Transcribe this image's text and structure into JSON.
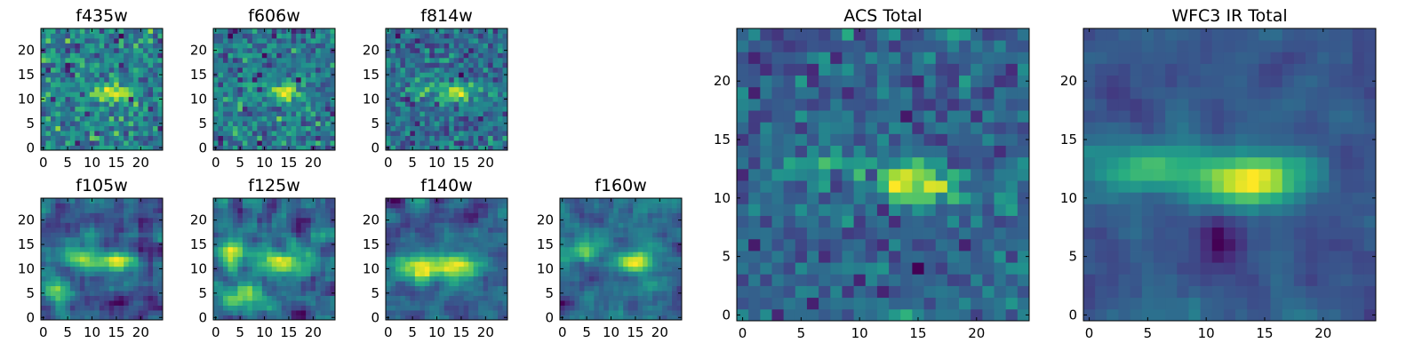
{
  "chart_data": [
    {
      "type": "heatmap",
      "title": "f435w",
      "xlabel": "",
      "ylabel": "",
      "grid_size": 25,
      "xlim": [
        0,
        25
      ],
      "ylim": [
        0,
        25
      ],
      "xticks": [
        0,
        5,
        10,
        15,
        20
      ],
      "yticks": [
        0,
        5,
        10,
        15,
        20
      ],
      "colormap": "viridis",
      "grid": false,
      "features": [
        {
          "x": 15,
          "y": 12,
          "sx": 2.0,
          "sy": 1.2,
          "amp": 1.0
        },
        {
          "x": 11,
          "y": 12,
          "sx": 1.5,
          "sy": 1.2,
          "amp": 0.4
        }
      ],
      "noise": 0.55,
      "seed": 11
    },
    {
      "type": "heatmap",
      "title": "f606w",
      "xlabel": "",
      "ylabel": "",
      "grid_size": 25,
      "xlim": [
        0,
        25
      ],
      "ylim": [
        0,
        25
      ],
      "xticks": [
        0,
        5,
        10,
        15,
        20
      ],
      "yticks": [
        0,
        5,
        10,
        15,
        20
      ],
      "colormap": "viridis",
      "grid": false,
      "features": [
        {
          "x": 15,
          "y": 12,
          "sx": 2.2,
          "sy": 1.2,
          "amp": 1.0
        },
        {
          "x": 7,
          "y": 12,
          "sx": 1.5,
          "sy": 1.2,
          "amp": 0.35
        }
      ],
      "noise": 0.5,
      "seed": 23
    },
    {
      "type": "heatmap",
      "title": "f814w",
      "xlabel": "",
      "ylabel": "",
      "grid_size": 25,
      "xlim": [
        0,
        25
      ],
      "ylim": [
        0,
        25
      ],
      "xticks": [
        0,
        5,
        10,
        15,
        20
      ],
      "yticks": [
        0,
        5,
        10,
        15,
        20
      ],
      "colormap": "viridis",
      "grid": false,
      "features": [
        {
          "x": 15,
          "y": 12,
          "sx": 2.5,
          "sy": 1.3,
          "amp": 1.0
        },
        {
          "x": 7,
          "y": 13,
          "sx": 2.0,
          "sy": 1.2,
          "amp": 0.5
        }
      ],
      "noise": 0.5,
      "seed": 37
    },
    {
      "type": "heatmap",
      "title": "f105w",
      "xlabel": "",
      "ylabel": "",
      "grid_size": 25,
      "xlim": [
        0,
        25
      ],
      "ylim": [
        0,
        25
      ],
      "xticks": [
        0,
        5,
        10,
        15,
        20
      ],
      "yticks": [
        0,
        5,
        10,
        15,
        20
      ],
      "colormap": "viridis",
      "grid": false,
      "features": [
        {
          "x": 15,
          "y": 12,
          "sx": 2.5,
          "sy": 1.5,
          "amp": 0.8
        },
        {
          "x": 8,
          "y": 13,
          "sx": 2.5,
          "sy": 1.5,
          "amp": 0.5
        },
        {
          "x": 3,
          "y": 6,
          "sx": 2.5,
          "sy": 2.0,
          "amp": 0.4
        }
      ],
      "noise": 0.4,
      "smooth": true,
      "seed": 41
    },
    {
      "type": "heatmap",
      "title": "f125w",
      "xlabel": "",
      "ylabel": "",
      "grid_size": 25,
      "xlim": [
        0,
        25
      ],
      "ylim": [
        0,
        25
      ],
      "xticks": [
        0,
        5,
        10,
        15,
        20
      ],
      "yticks": [
        0,
        5,
        10,
        15,
        20
      ],
      "colormap": "viridis",
      "grid": false,
      "features": [
        {
          "x": 14,
          "y": 12,
          "sx": 3.0,
          "sy": 1.8,
          "amp": 0.6
        },
        {
          "x": 4,
          "y": 14,
          "sx": 2.0,
          "sy": 2.0,
          "amp": 0.5
        },
        {
          "x": 6,
          "y": 5,
          "sx": 3.0,
          "sy": 2.0,
          "amp": 0.5
        }
      ],
      "noise": 0.45,
      "smooth": true,
      "seed": 53
    },
    {
      "type": "heatmap",
      "title": "f140w",
      "xlabel": "",
      "ylabel": "",
      "grid_size": 25,
      "xlim": [
        0,
        25
      ],
      "ylim": [
        0,
        25
      ],
      "xticks": [
        0,
        5,
        10,
        15,
        20
      ],
      "yticks": [
        0,
        5,
        10,
        15,
        20
      ],
      "colormap": "viridis",
      "grid": false,
      "features": [
        {
          "x": 14,
          "y": 11,
          "sx": 4.0,
          "sy": 1.8,
          "amp": 0.8
        },
        {
          "x": 6,
          "y": 10,
          "sx": 3.0,
          "sy": 2.0,
          "amp": 0.6
        }
      ],
      "noise": 0.4,
      "smooth": true,
      "seed": 67
    },
    {
      "type": "heatmap",
      "title": "f160w",
      "xlabel": "",
      "ylabel": "",
      "grid_size": 25,
      "xlim": [
        0,
        25
      ],
      "ylim": [
        0,
        25
      ],
      "xticks": [
        0,
        5,
        10,
        15,
        20
      ],
      "yticks": [
        0,
        5,
        10,
        15,
        20
      ],
      "colormap": "viridis",
      "grid": false,
      "features": [
        {
          "x": 15,
          "y": 12,
          "sx": 2.5,
          "sy": 1.5,
          "amp": 0.9
        },
        {
          "x": 5,
          "y": 14,
          "sx": 2.0,
          "sy": 1.5,
          "amp": 0.6
        }
      ],
      "noise": 0.4,
      "smooth": true,
      "seed": 79
    },
    {
      "type": "heatmap",
      "title": "ACS Total",
      "xlabel": "",
      "ylabel": "",
      "grid_size": 25,
      "xlim": [
        0,
        25
      ],
      "ylim": [
        0,
        25
      ],
      "xticks": [
        0,
        5,
        10,
        15,
        20
      ],
      "yticks": [
        0,
        5,
        10,
        15,
        20
      ],
      "colormap": "viridis",
      "grid": false,
      "features": [
        {
          "x": 15.5,
          "y": 11.8,
          "sx": 2.3,
          "sy": 1.2,
          "amp": 1.0
        },
        {
          "x": 7,
          "y": 13.5,
          "sx": 2.5,
          "sy": 1.0,
          "amp": 0.4
        }
      ],
      "noise": 0.35,
      "seed": 97
    },
    {
      "type": "heatmap",
      "title": "WFC3 IR Total",
      "xlabel": "",
      "ylabel": "",
      "grid_size": 25,
      "xlim": [
        0,
        25
      ],
      "ylim": [
        0,
        25
      ],
      "xticks": [
        0,
        5,
        10,
        15,
        20
      ],
      "yticks": [
        0,
        5,
        10,
        15,
        20
      ],
      "colormap": "viridis",
      "grid": false,
      "features": [
        {
          "x": 14.5,
          "y": 12.2,
          "sx": 3.0,
          "sy": 1.6,
          "amp": 1.0
        },
        {
          "x": 6,
          "y": 13,
          "sx": 3.5,
          "sy": 1.5,
          "amp": 0.6
        },
        {
          "x": 12,
          "y": 6.5,
          "sx": 1.5,
          "sy": 1.5,
          "amp": -0.4
        }
      ],
      "noise": 0.22,
      "smooth": true,
      "seed": 113
    }
  ]
}
